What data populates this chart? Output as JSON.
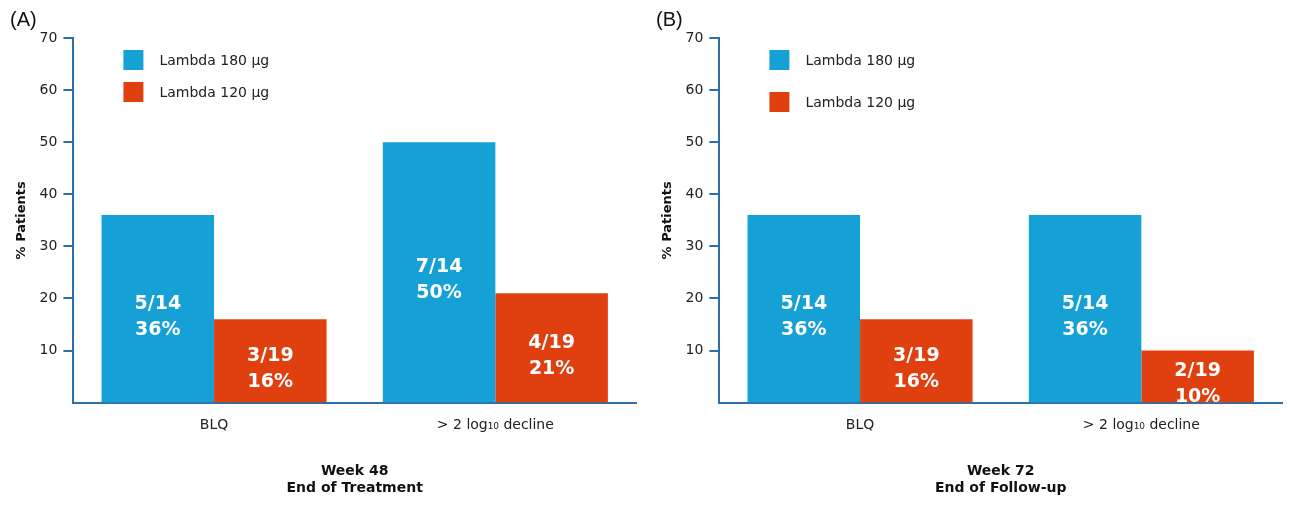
{
  "chart_data": [
    {
      "type": "bar",
      "categories": [
        "BLQ",
        "> 2 log₁₀ decline"
      ],
      "xlabel": "Week 48\nEnd of Treatment",
      "ylabel": "% Patients",
      "series": [
        {
          "name": "Lambda 180 µg",
          "color": "#15a0d6",
          "values": [
            36,
            50
          ],
          "value_labels": [
            "5/14\n36%",
            "7/14\n50%"
          ]
        },
        {
          "name": "Lambda 120 µg",
          "color": "#e0400f",
          "values": [
            16,
            21
          ],
          "value_labels": [
            "3/19\n16%",
            "4/19\n21%"
          ]
        }
      ],
      "ylim": [
        0,
        70
      ],
      "yticks": [
        10,
        20,
        30,
        40,
        50,
        60,
        70
      ],
      "grid": false,
      "legend": "top left",
      "annotations": [
        "(A)"
      ]
    },
    {
      "type": "bar",
      "categories": [
        "BLQ",
        "> 2 log₁₀ decline"
      ],
      "xlabel": "Week 72\nEnd of Follow-up",
      "ylabel": "% Patients",
      "series": [
        {
          "name": "Lambda 180 µg",
          "color": "#15a0d6",
          "values": [
            36,
            36
          ],
          "value_labels": [
            "5/14\n36%",
            "5/14\n36%"
          ]
        },
        {
          "name": "Lambda 120 µg",
          "color": "#e0400f",
          "values": [
            16,
            10
          ],
          "value_labels": [
            "3/19\n16%",
            "2/19\n10%"
          ]
        }
      ],
      "ylim": [
        0,
        70
      ],
      "yticks": [
        10,
        20,
        30,
        40,
        50,
        60,
        70
      ],
      "grid": false,
      "legend": "top left",
      "annotations": [
        "(B)"
      ]
    }
  ]
}
